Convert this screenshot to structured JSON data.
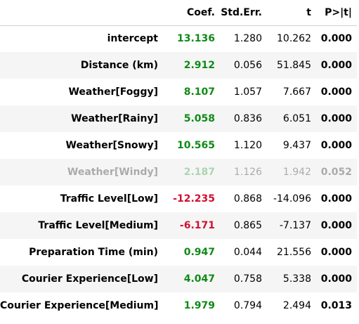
{
  "table": {
    "headers": [
      "",
      "Coef.",
      "Std.Err.",
      "t",
      "P>|t|"
    ],
    "colors": {
      "positive": "#0f8a17",
      "negative": "#d10f2f",
      "stripe": "#f5f5f5"
    },
    "rows": [
      {
        "name": "intercept",
        "coef": "13.136",
        "se": "1.280",
        "t": "10.262",
        "p": "0.000",
        "sign": "pos",
        "faded": false
      },
      {
        "name": "Distance (km)",
        "coef": "2.912",
        "se": "0.056",
        "t": "51.845",
        "p": "0.000",
        "sign": "pos",
        "faded": false
      },
      {
        "name": "Weather[Foggy]",
        "coef": "8.107",
        "se": "1.057",
        "t": "7.667",
        "p": "0.000",
        "sign": "pos",
        "faded": false
      },
      {
        "name": "Weather[Rainy]",
        "coef": "5.058",
        "se": "0.836",
        "t": "6.051",
        "p": "0.000",
        "sign": "pos",
        "faded": false
      },
      {
        "name": "Weather[Snowy]",
        "coef": "10.565",
        "se": "1.120",
        "t": "9.437",
        "p": "0.000",
        "sign": "pos",
        "faded": false
      },
      {
        "name": "Weather[Windy]",
        "coef": "2.187",
        "se": "1.126",
        "t": "1.942",
        "p": "0.052",
        "sign": "pos",
        "faded": true
      },
      {
        "name": "Traffic Level[Low]",
        "coef": "-12.235",
        "se": "0.868",
        "t": "-14.096",
        "p": "0.000",
        "sign": "neg",
        "faded": false
      },
      {
        "name": "Traffic Level[Medium]",
        "coef": "-6.171",
        "se": "0.865",
        "t": "-7.137",
        "p": "0.000",
        "sign": "neg",
        "faded": false
      },
      {
        "name": "Preparation Time (min)",
        "coef": "0.947",
        "se": "0.044",
        "t": "21.556",
        "p": "0.000",
        "sign": "pos",
        "faded": false
      },
      {
        "name": "Courier Experience[Low]",
        "coef": "4.047",
        "se": "0.758",
        "t": "5.338",
        "p": "0.000",
        "sign": "pos",
        "faded": false
      },
      {
        "name": "Courier Experience[Medium]",
        "coef": "1.979",
        "se": "0.794",
        "t": "2.494",
        "p": "0.013",
        "sign": "pos",
        "faded": false
      }
    ]
  }
}
